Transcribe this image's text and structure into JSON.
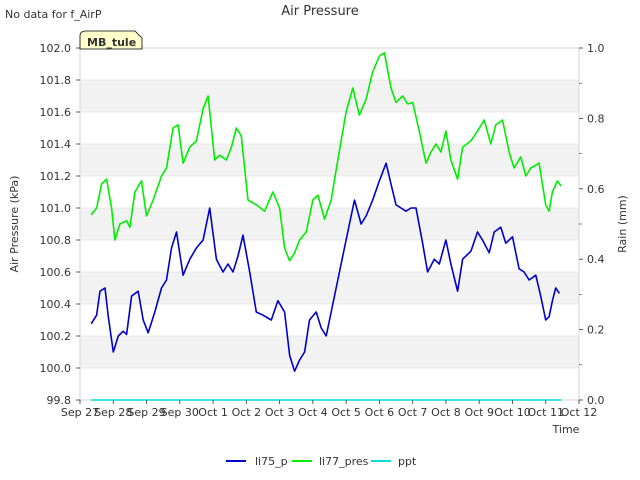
{
  "no_data_note": "No data for f_AirP",
  "site_badge": "MB_tule",
  "chart_data": {
    "type": "line",
    "title": "Air Pressure",
    "xlabel": "Time",
    "ylabel": "Air Pressure (kPa)",
    "y2label": "Rain (mm)",
    "ylim": [
      99.8,
      102.0
    ],
    "y2lim": [
      0.0,
      1.0
    ],
    "yticks": [
      "99.8",
      "100.0",
      "100.2",
      "100.4",
      "100.6",
      "100.8",
      "101.0",
      "101.2",
      "101.4",
      "101.6",
      "101.8",
      "102.0"
    ],
    "y2ticks": [
      "0.0",
      "0.2",
      "0.4",
      "0.6",
      "0.8",
      "1.0"
    ],
    "xlim": [
      0,
      15
    ],
    "xticks": [
      "Sep 27",
      "Sep 28",
      "Sep 29",
      "Sep 30",
      "Oct 1",
      "Oct 2",
      "Oct 3",
      "Oct 4",
      "Oct 5",
      "Oct 6",
      "Oct 7",
      "Oct 8",
      "Oct 9",
      "Oct 10",
      "Oct 11",
      "Oct 12"
    ],
    "legend_position": "bottom-center",
    "series": [
      {
        "name": "li75_p",
        "color": "#0000cc",
        "axis": "left",
        "x": [
          0.35,
          0.5,
          0.6,
          0.75,
          0.85,
          1.0,
          1.15,
          1.3,
          1.4,
          1.55,
          1.75,
          1.9,
          2.05,
          2.25,
          2.45,
          2.6,
          2.75,
          2.9,
          3.1,
          3.3,
          3.5,
          3.7,
          3.9,
          4.1,
          4.3,
          4.45,
          4.6,
          4.75,
          4.9,
          5.1,
          5.3,
          5.5,
          5.75,
          5.95,
          6.15,
          6.3,
          6.45,
          6.6,
          6.75,
          6.9,
          7.1,
          7.25,
          7.4,
          7.55,
          7.75,
          8.0,
          8.25,
          8.45,
          8.6,
          8.8,
          9.0,
          9.2,
          9.35,
          9.5,
          9.65,
          9.8,
          9.95,
          10.1,
          10.3,
          10.45,
          10.65,
          10.8,
          11.0,
          11.15,
          11.35,
          11.5,
          11.75,
          11.95,
          12.1,
          12.3,
          12.45,
          12.65,
          12.8,
          13.0,
          13.2,
          13.35,
          13.5,
          13.7,
          13.85,
          14.0,
          14.1,
          14.2,
          14.3,
          14.4
        ],
        "y": [
          100.28,
          100.33,
          100.48,
          100.5,
          100.32,
          100.1,
          100.2,
          100.23,
          100.21,
          100.45,
          100.48,
          100.3,
          100.22,
          100.35,
          100.5,
          100.55,
          100.75,
          100.85,
          100.58,
          100.68,
          100.75,
          100.8,
          101.0,
          100.68,
          100.6,
          100.65,
          100.6,
          100.7,
          100.83,
          100.6,
          100.35,
          100.33,
          100.3,
          100.42,
          100.35,
          100.08,
          99.98,
          100.05,
          100.1,
          100.3,
          100.35,
          100.25,
          100.2,
          100.35,
          100.55,
          100.8,
          101.05,
          100.9,
          100.95,
          101.05,
          101.17,
          101.28,
          101.15,
          101.02,
          101.0,
          100.98,
          101.0,
          101.0,
          100.78,
          100.6,
          100.68,
          100.65,
          100.8,
          100.65,
          100.48,
          100.68,
          100.73,
          100.85,
          100.8,
          100.72,
          100.85,
          100.88,
          100.78,
          100.82,
          100.62,
          100.6,
          100.55,
          100.58,
          100.45,
          100.3,
          100.32,
          100.42,
          100.5,
          100.47
        ]
      },
      {
        "name": "li77_pres",
        "color": "#00ee00",
        "axis": "left",
        "x": [
          0.35,
          0.5,
          0.65,
          0.8,
          0.95,
          1.05,
          1.2,
          1.4,
          1.5,
          1.65,
          1.85,
          2.0,
          2.2,
          2.45,
          2.6,
          2.8,
          2.95,
          3.1,
          3.3,
          3.5,
          3.7,
          3.85,
          4.05,
          4.2,
          4.4,
          4.55,
          4.7,
          4.85,
          5.05,
          5.3,
          5.55,
          5.8,
          6.0,
          6.15,
          6.3,
          6.45,
          6.6,
          6.8,
          7.0,
          7.15,
          7.35,
          7.55,
          7.75,
          8.0,
          8.2,
          8.4,
          8.6,
          8.8,
          9.0,
          9.15,
          9.35,
          9.5,
          9.7,
          9.85,
          10.0,
          10.2,
          10.4,
          10.55,
          10.7,
          10.85,
          11.0,
          11.15,
          11.35,
          11.5,
          11.75,
          11.95,
          12.15,
          12.35,
          12.5,
          12.7,
          12.9,
          13.05,
          13.25,
          13.4,
          13.55,
          13.8,
          14.0,
          14.1,
          14.2,
          14.35,
          14.45
        ],
        "y": [
          100.96,
          101.0,
          101.15,
          101.18,
          101.0,
          100.8,
          100.9,
          100.92,
          100.88,
          101.1,
          101.17,
          100.95,
          101.05,
          101.2,
          101.25,
          101.5,
          101.52,
          101.28,
          101.38,
          101.42,
          101.62,
          101.7,
          101.3,
          101.33,
          101.3,
          101.38,
          101.5,
          101.45,
          101.05,
          101.02,
          100.98,
          101.1,
          101.0,
          100.75,
          100.67,
          100.72,
          100.8,
          100.85,
          101.05,
          101.08,
          100.93,
          101.05,
          101.3,
          101.6,
          101.75,
          101.58,
          101.68,
          101.85,
          101.95,
          101.97,
          101.75,
          101.66,
          101.7,
          101.65,
          101.66,
          101.48,
          101.28,
          101.35,
          101.4,
          101.35,
          101.48,
          101.3,
          101.18,
          101.38,
          101.42,
          101.48,
          101.55,
          101.4,
          101.52,
          101.55,
          101.35,
          101.25,
          101.32,
          101.2,
          101.25,
          101.28,
          101.02,
          100.98,
          101.1,
          101.17,
          101.14
        ]
      },
      {
        "name": "ppt",
        "color": "#00dddd",
        "axis": "right",
        "x": [
          0.35,
          14.45
        ],
        "y": [
          0.0,
          0.0
        ]
      }
    ]
  }
}
